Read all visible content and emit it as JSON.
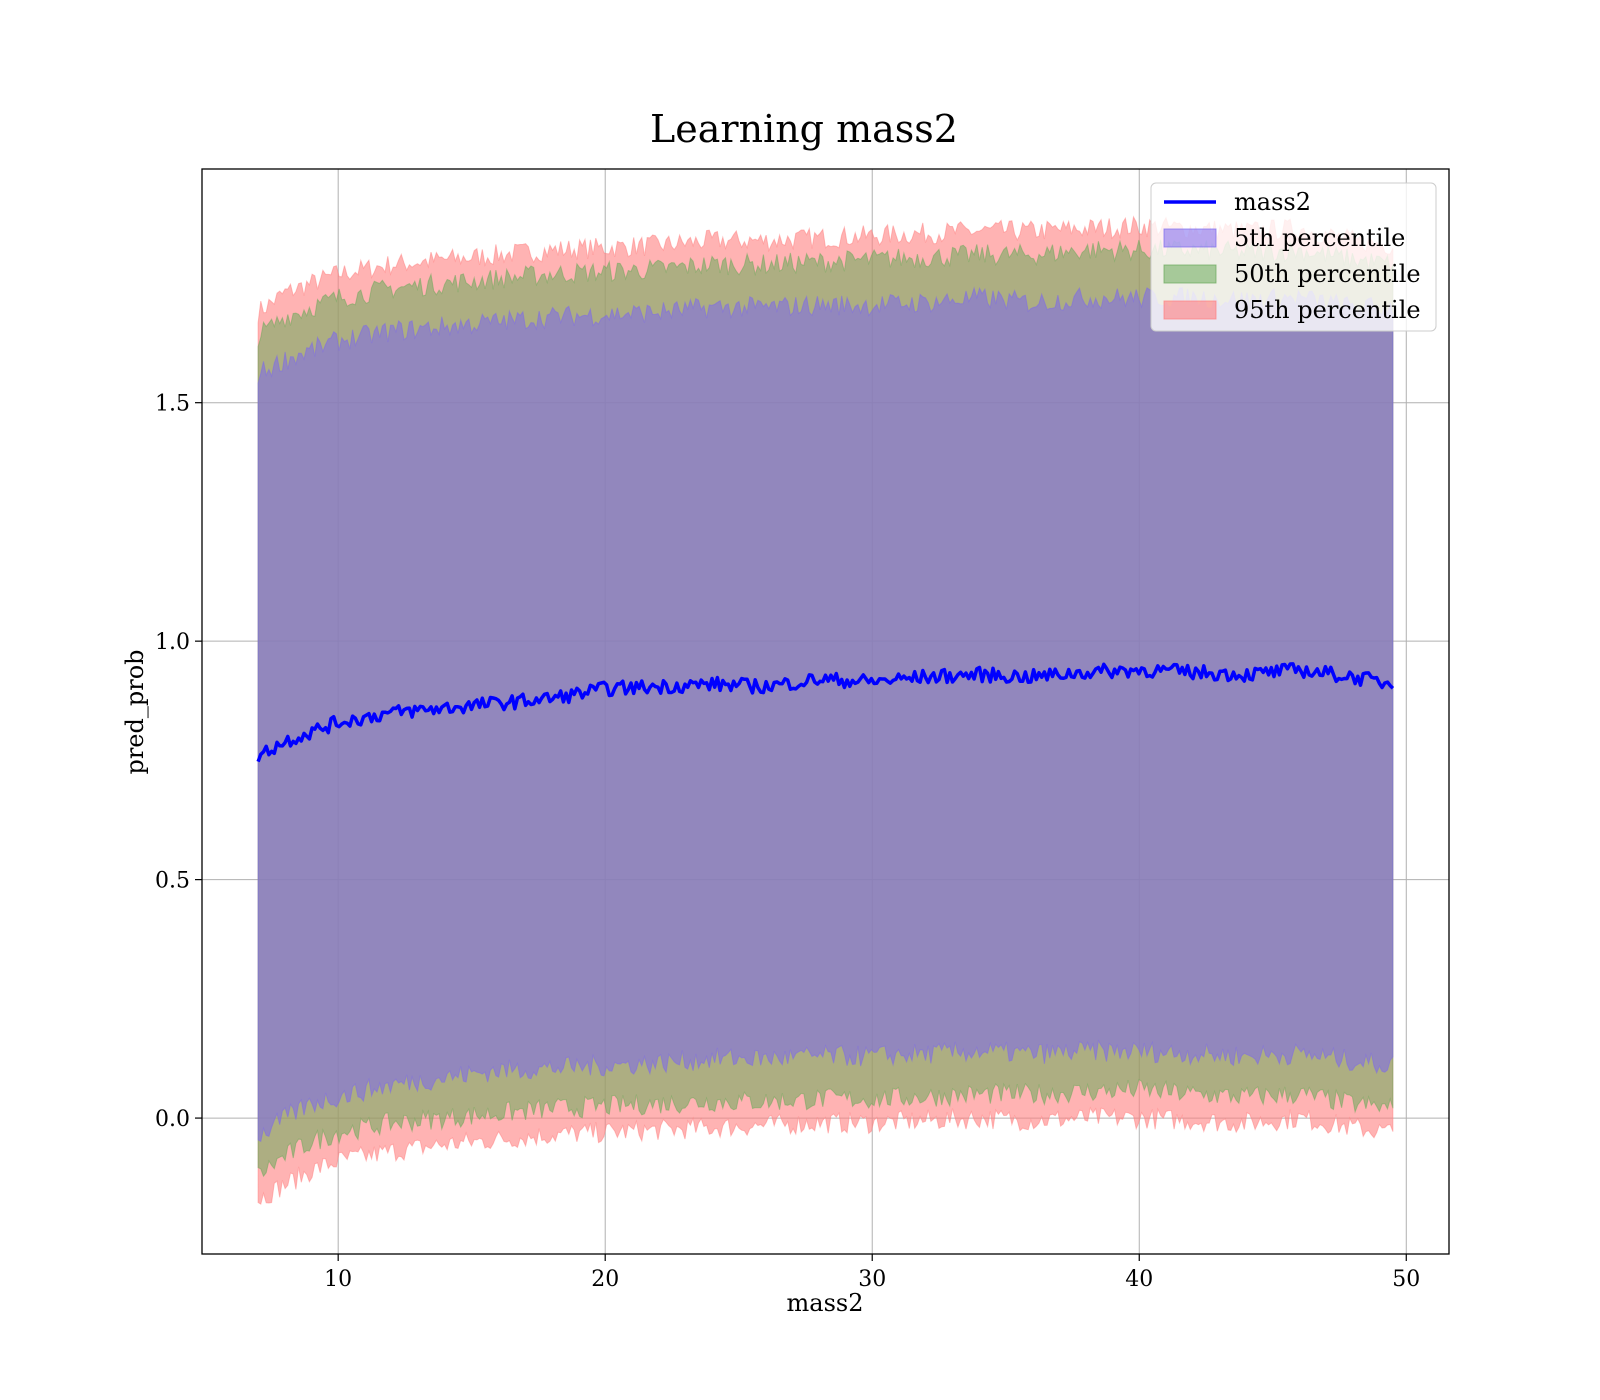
{
  "chart_data": {
    "type": "area",
    "title": "Learning mass2",
    "xlabel": "mass2",
    "ylabel": "pred_prob",
    "xlim": [
      4.9,
      51.6
    ],
    "ylim": [
      -0.285,
      1.99
    ],
    "xticks": [
      10,
      20,
      30,
      40,
      50
    ],
    "xtick_labels": [
      "10",
      "20",
      "30",
      "40",
      "50"
    ],
    "yticks": [
      0.0,
      0.5,
      1.0,
      1.5
    ],
    "ytick_labels": [
      "0.0",
      "0.5",
      "1.0",
      "1.5"
    ],
    "grid": true,
    "legend_position": "top-right",
    "x": [
      7.0,
      8,
      9,
      10,
      12,
      14,
      16,
      18,
      20,
      22,
      24,
      26,
      28,
      30,
      32,
      34,
      36,
      38,
      40,
      42,
      44,
      46,
      48,
      49.5
    ],
    "line": {
      "name": "mass2",
      "color": "#0000ff",
      "values": [
        0.76,
        0.79,
        0.81,
        0.83,
        0.85,
        0.86,
        0.87,
        0.88,
        0.9,
        0.905,
        0.91,
        0.905,
        0.92,
        0.915,
        0.925,
        0.93,
        0.925,
        0.935,
        0.94,
        0.935,
        0.93,
        0.94,
        0.925,
        0.91
      ]
    },
    "bands": [
      {
        "name": "5th percentile",
        "color": "#7b68ee",
        "lower": [
          -0.04,
          0.0,
          0.03,
          0.045,
          0.07,
          0.085,
          0.1,
          0.105,
          0.11,
          0.115,
          0.125,
          0.125,
          0.13,
          0.13,
          0.135,
          0.14,
          0.135,
          0.14,
          0.14,
          0.135,
          0.13,
          0.135,
          0.12,
          0.11
        ],
        "upper": [
          1.56,
          1.59,
          1.61,
          1.63,
          1.65,
          1.66,
          1.67,
          1.68,
          1.685,
          1.69,
          1.7,
          1.7,
          1.705,
          1.705,
          1.71,
          1.72,
          1.71,
          1.72,
          1.72,
          1.72,
          1.715,
          1.72,
          1.7,
          1.7
        ]
      },
      {
        "name": "50th percentile",
        "color": "#6aaa5a",
        "lower": [
          -0.12,
          -0.08,
          -0.05,
          -0.03,
          -0.01,
          0.0,
          0.01,
          0.02,
          0.025,
          0.03,
          0.035,
          0.035,
          0.04,
          0.04,
          0.045,
          0.05,
          0.05,
          0.055,
          0.06,
          0.05,
          0.045,
          0.05,
          0.03,
          0.02
        ],
        "upper": [
          1.64,
          1.68,
          1.7,
          1.72,
          1.74,
          1.75,
          1.76,
          1.77,
          1.775,
          1.78,
          1.79,
          1.79,
          1.795,
          1.8,
          1.805,
          1.81,
          1.81,
          1.82,
          1.82,
          1.82,
          1.815,
          1.82,
          1.8,
          1.79
        ]
      },
      {
        "name": "95th percentile",
        "color": "#f08080",
        "lower": [
          -0.17,
          -0.14,
          -0.11,
          -0.09,
          -0.07,
          -0.055,
          -0.045,
          -0.035,
          -0.03,
          -0.025,
          -0.02,
          -0.015,
          -0.01,
          -0.01,
          -0.005,
          0.0,
          -0.005,
          0.0,
          0.0,
          -0.005,
          -0.01,
          0.0,
          -0.02,
          -0.03
        ],
        "upper": [
          1.69,
          1.73,
          1.75,
          1.77,
          1.79,
          1.8,
          1.81,
          1.82,
          1.825,
          1.83,
          1.84,
          1.84,
          1.845,
          1.85,
          1.855,
          1.86,
          1.86,
          1.865,
          1.87,
          1.865,
          1.86,
          1.865,
          1.84,
          1.83
        ]
      }
    ],
    "legend": [
      "mass2",
      "5th percentile",
      "50th percentile",
      "95th percentile"
    ]
  }
}
